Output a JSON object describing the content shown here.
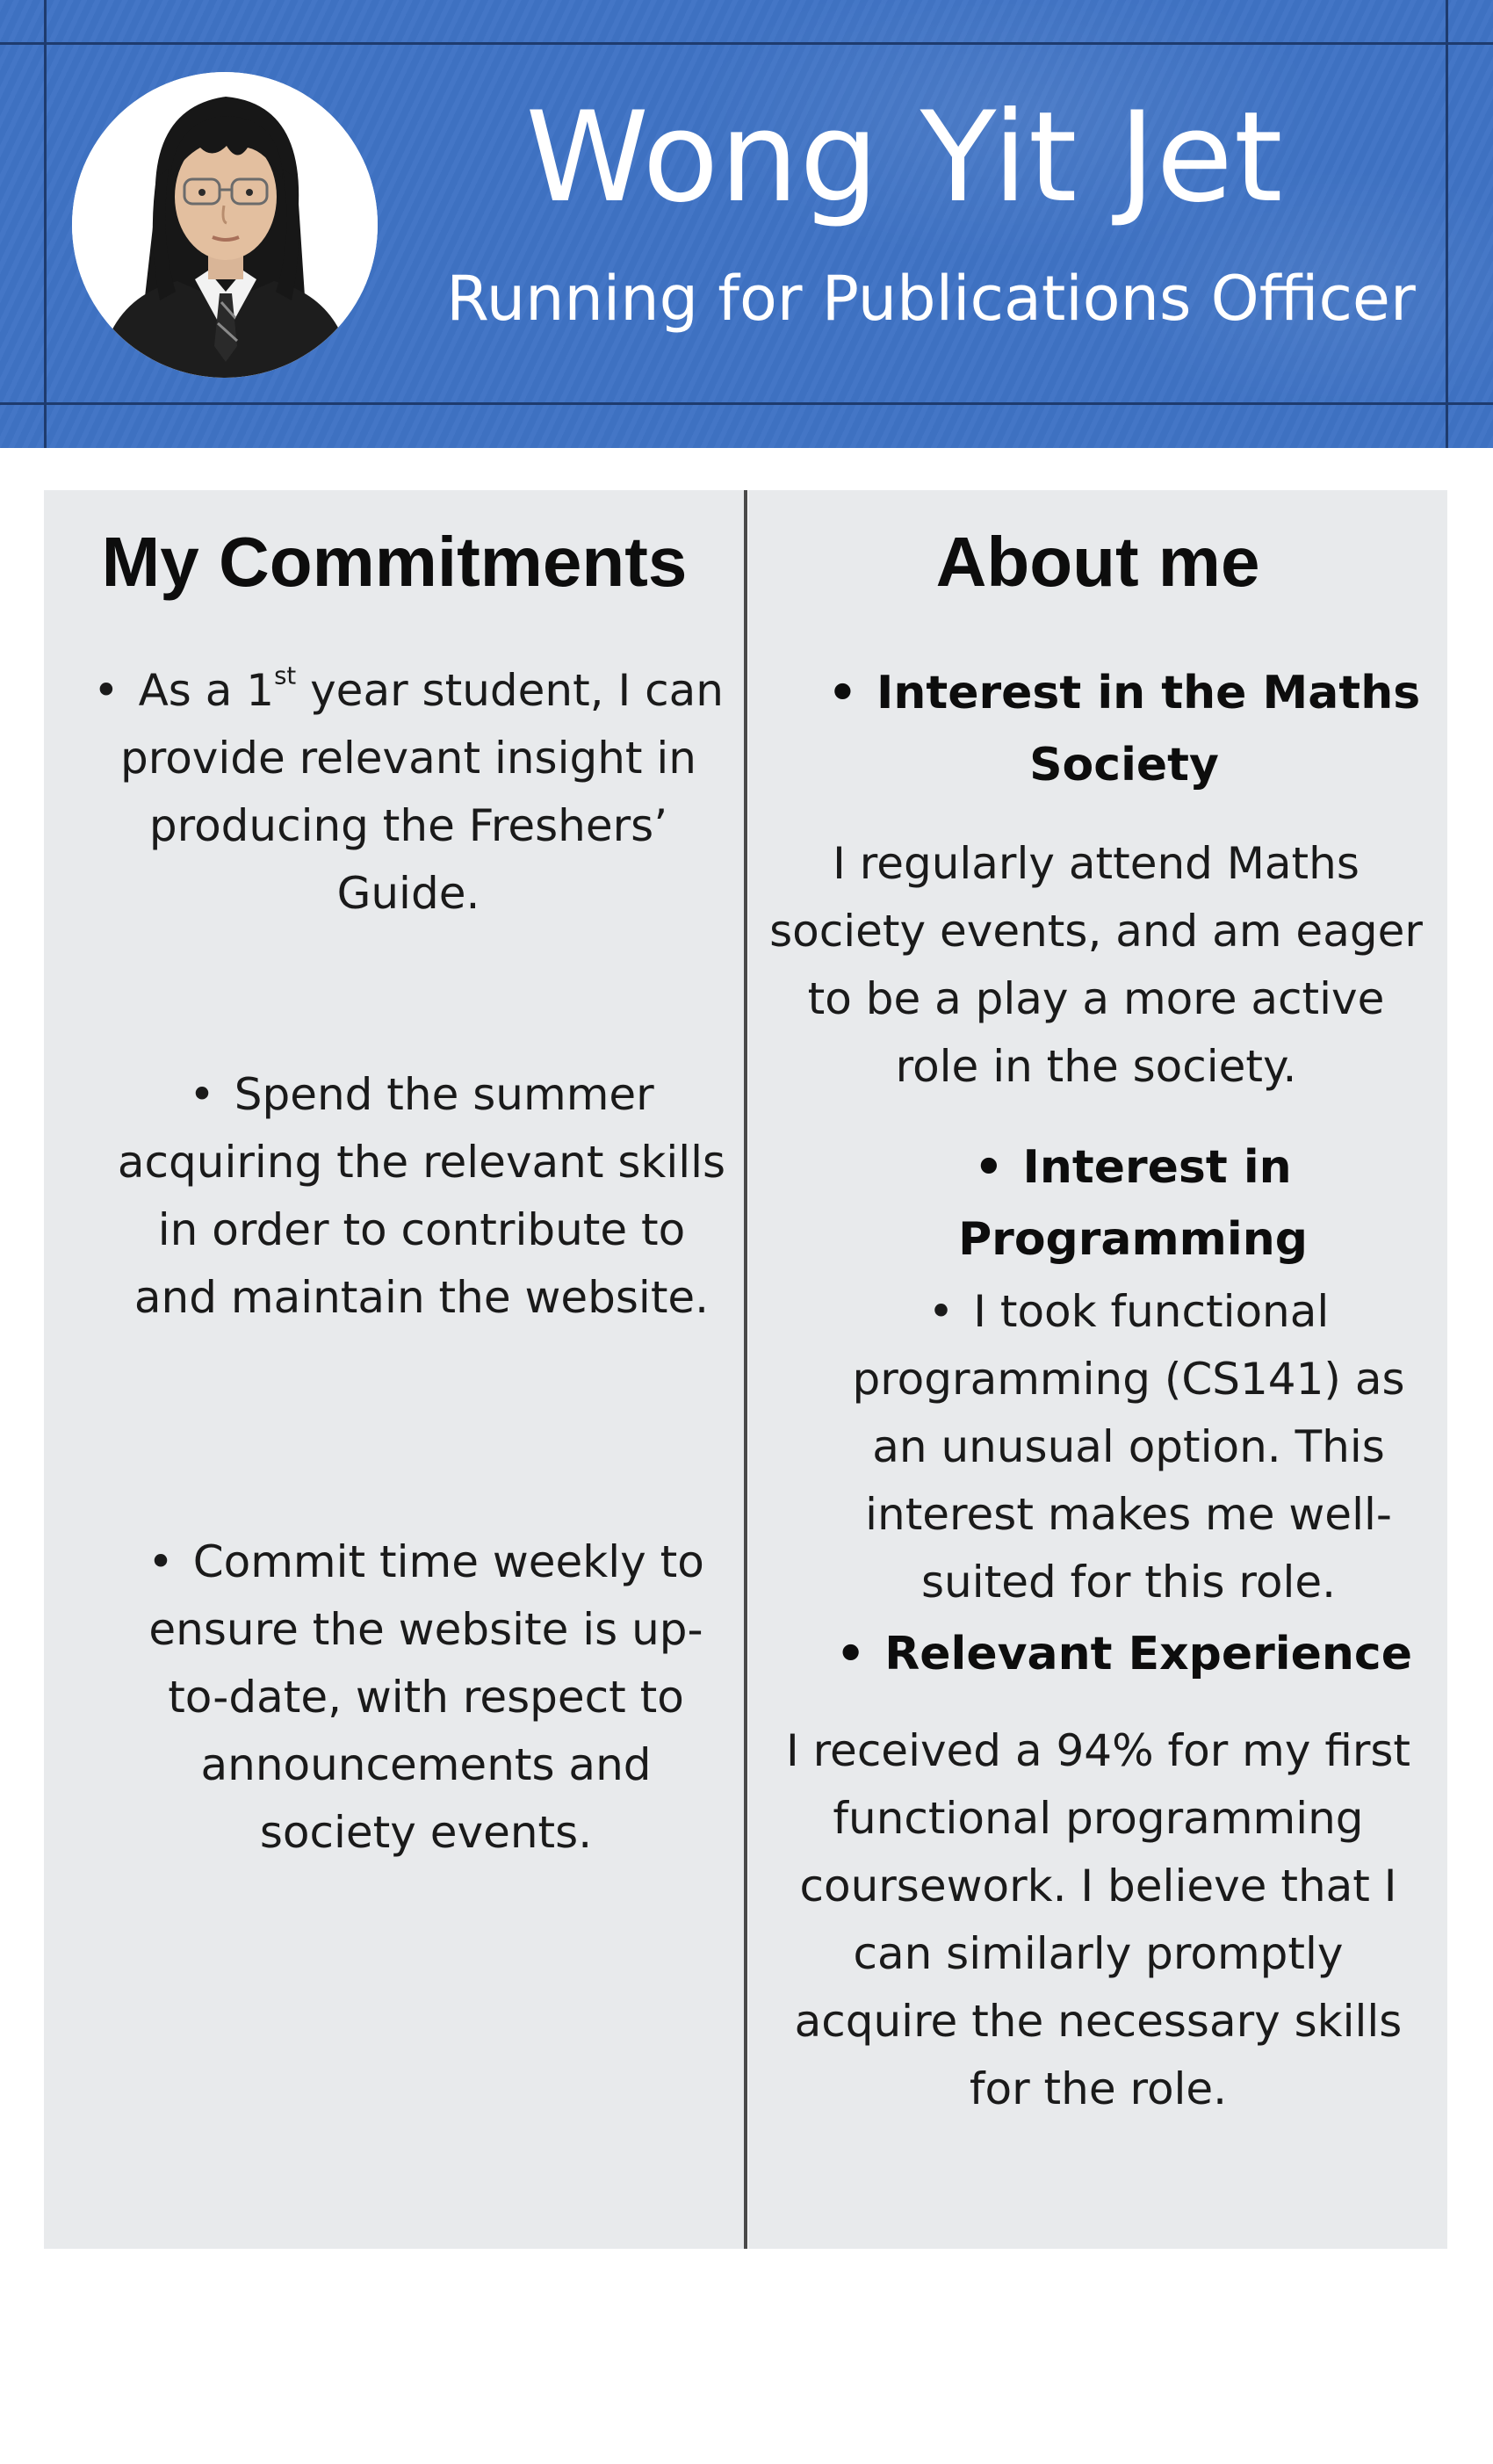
{
  "candidate": {
    "name": "Wong Yit Jet",
    "role": "Running for Publications Officer",
    "photo_icon": "candidate-photo"
  },
  "commitments": {
    "heading": "My Commitments",
    "items": [
      {
        "pre": "As a 1",
        "sup": "st",
        "post": " year student, I can provide relevant insight in producing the Freshers’ Guide."
      },
      {
        "text": "Spend the summer acquiring the relevant skills in order to contribute to and maintain the website."
      },
      {
        "text": "Commit time weekly to ensure the website is up-to-date, with respect to announcements and society events."
      }
    ]
  },
  "about": {
    "heading": "About me",
    "sections": [
      {
        "title": "Interest in the Maths Society",
        "body": "I regularly attend Maths society events, and am eager to be a play a more active role in the society."
      },
      {
        "title": "Interest in Programming",
        "body": "I took functional programming (CS141) as an unusual option. This interest makes me well-suited for this role."
      },
      {
        "title": "Relevant Experience",
        "body": "I received a 94% for my first functional programming coursework. I believe that I can similarly promptly acquire the necessary skills for the role."
      }
    ]
  },
  "colors": {
    "header_blue": "#3f73c5",
    "frame_line": "#1e3b6e",
    "panel_grey": "#e8eaec",
    "divider": "#4a4a4a"
  }
}
